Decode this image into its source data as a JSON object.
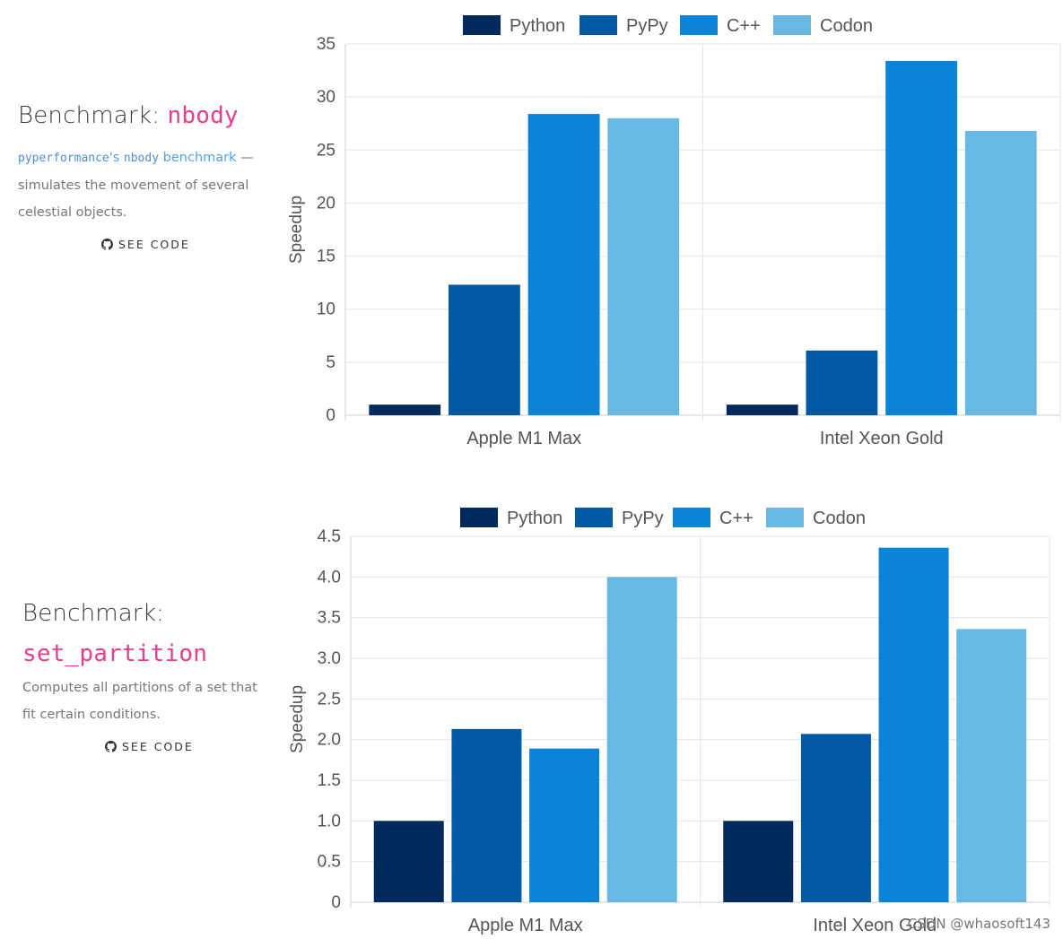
{
  "colors": {
    "Python": "#002a5c",
    "PyPy": "#0059a3",
    "C++": "#0a84d6",
    "Codon": "#67b9e3",
    "grid": "#e6e6e6",
    "axis": "#cfcfcf",
    "text": "#555555"
  },
  "benchmarks": [
    {
      "title_prefix": "Benchmark: ",
      "name": "nbody",
      "desc_code1": "pyperformance",
      "desc_part1": "'s ",
      "desc_code2": "nbody",
      "desc_link": " benchmark",
      "desc_rest": " — simulates the movement of several celestial objects.",
      "see_code": "SEE CODE"
    },
    {
      "title_prefix": "Benchmark:",
      "name": "set_partition",
      "desc": "Computes all partitions of a set that fit certain conditions.",
      "see_code": "SEE CODE"
    }
  ],
  "chart_data": [
    {
      "type": "bar",
      "categories": [
        "Apple M1 Max",
        "Intel Xeon Gold"
      ],
      "series": [
        {
          "name": "Python",
          "values": [
            1,
            1
          ]
        },
        {
          "name": "PyPy",
          "values": [
            12.3,
            6.1
          ]
        },
        {
          "name": "C++",
          "values": [
            28.4,
            33.4
          ]
        },
        {
          "name": "Codon",
          "values": [
            28.0,
            26.8
          ]
        }
      ],
      "ylabel": "Speedup",
      "ylim": [
        0,
        35
      ],
      "yticks": [
        "0",
        "5",
        "10",
        "15",
        "20",
        "25",
        "30",
        "35"
      ],
      "ytick_values": [
        0,
        5,
        10,
        15,
        20,
        25,
        30,
        35
      ],
      "legend": "top",
      "grid": true
    },
    {
      "type": "bar",
      "categories": [
        "Apple M1 Max",
        "Intel Xeon Gold"
      ],
      "series": [
        {
          "name": "Python",
          "values": [
            1.0,
            1.0
          ]
        },
        {
          "name": "PyPy",
          "values": [
            2.13,
            2.07
          ]
        },
        {
          "name": "C++",
          "values": [
            1.89,
            4.36
          ]
        },
        {
          "name": "Codon",
          "values": [
            4.0,
            3.36
          ]
        }
      ],
      "ylabel": "Speedup",
      "ylim": [
        0,
        4.5
      ],
      "yticks": [
        "0",
        "0.5",
        "1.0",
        "1.5",
        "2.0",
        "2.5",
        "3.0",
        "3.5",
        "4.0",
        "4.5"
      ],
      "ytick_values": [
        0,
        0.5,
        1.0,
        1.5,
        2.0,
        2.5,
        3.0,
        3.5,
        4.0,
        4.5
      ],
      "legend": "top",
      "grid": true
    }
  ],
  "watermark": "CSDN @whaosoft143"
}
